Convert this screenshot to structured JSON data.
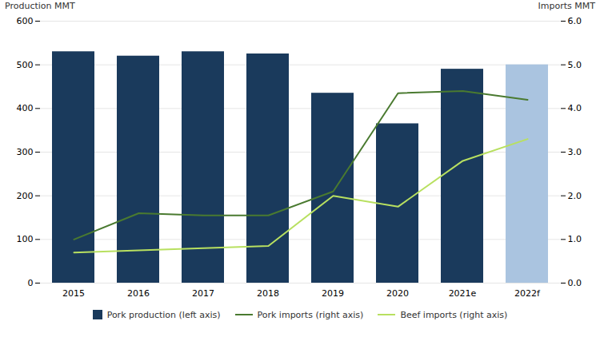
{
  "chart_data": {
    "type": "bar",
    "categories": [
      "2015",
      "2016",
      "2017",
      "2018",
      "2019",
      "2020",
      "2021e",
      "2022f"
    ],
    "series": [
      {
        "name": "Pork production (left axis)",
        "type": "bar",
        "color": "#1a3a5c",
        "colors": [
          "#1a3a5c",
          "#1a3a5c",
          "#1a3a5c",
          "#1a3a5c",
          "#1a3a5c",
          "#1a3a5c",
          "#1a3a5c",
          "#aac4e0"
        ],
        "values": [
          530,
          520,
          530,
          525,
          435,
          365,
          490,
          500
        ]
      },
      {
        "name": "Pork imports (right axis)",
        "type": "line",
        "axis": "y2",
        "color": "#4a7a30",
        "values": [
          1.0,
          1.6,
          1.55,
          1.55,
          2.1,
          4.35,
          4.4,
          4.2
        ]
      },
      {
        "name": "Beef imports (right axis)",
        "type": "line",
        "axis": "y2",
        "color": "#b8e060",
        "values": [
          0.7,
          0.75,
          0.8,
          0.85,
          2.0,
          1.75,
          2.8,
          3.3
        ]
      }
    ],
    "ylabel": "Production MMT",
    "y2label": "Imports MMT",
    "ylim": [
      0,
      600
    ],
    "yticks": [
      0,
      100,
      200,
      300,
      400,
      500,
      600
    ],
    "y2lim": [
      0,
      6
    ],
    "y2ticks": [
      0,
      1,
      2,
      3,
      4,
      5,
      6
    ],
    "grid": true,
    "legend": "bottom"
  }
}
